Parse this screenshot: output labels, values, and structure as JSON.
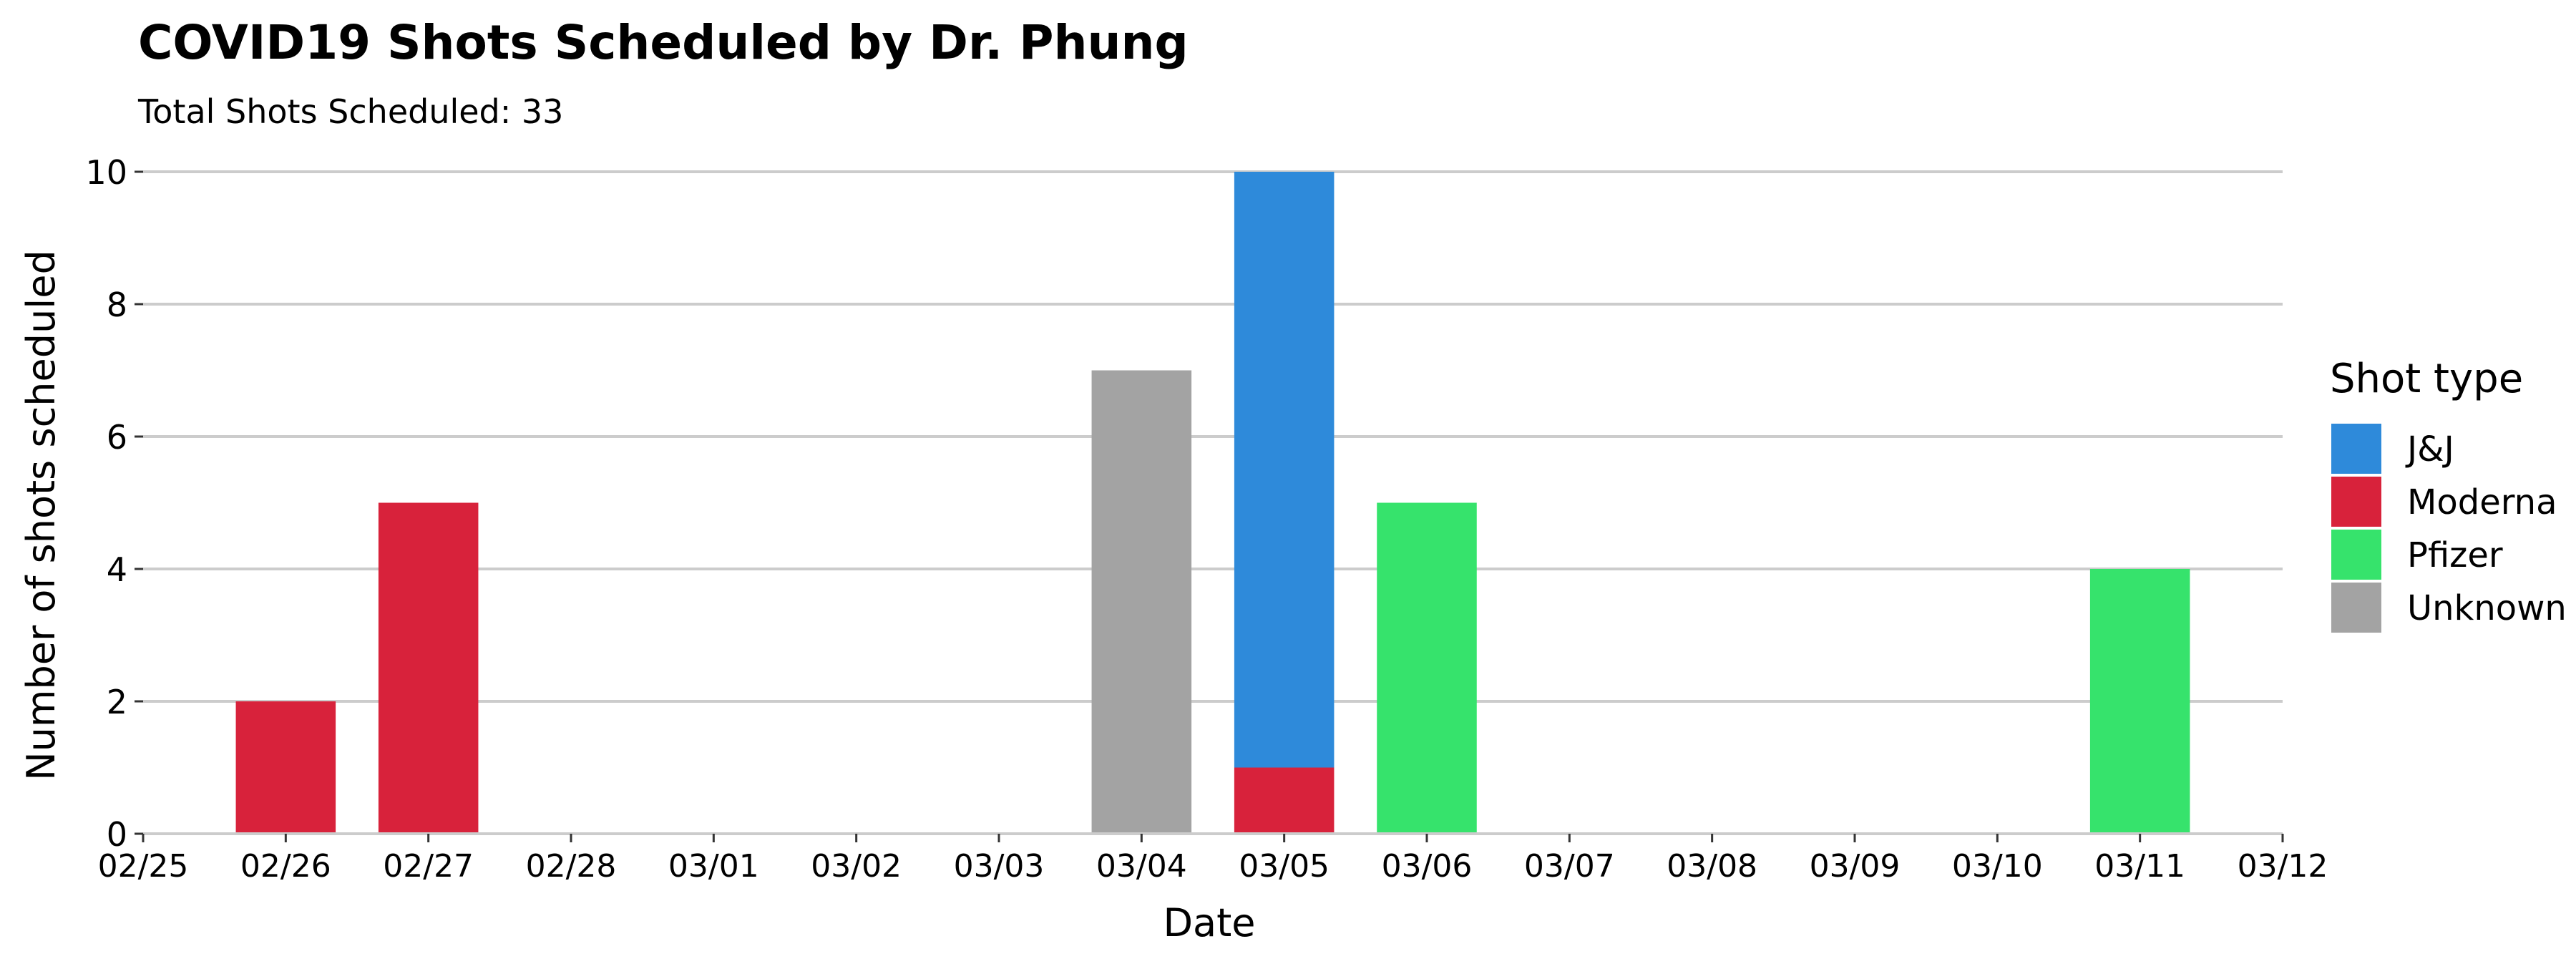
{
  "chart_data": {
    "type": "bar",
    "stacked": true,
    "title": "COVID19 Shots Scheduled by Dr. Phung",
    "subtitle": "Total Shots Scheduled: 33",
    "xlabel": "Date",
    "ylabel": "Number of shots scheduled",
    "x_ticks": [
      "02/25",
      "02/26",
      "02/27",
      "02/28",
      "03/01",
      "03/02",
      "03/03",
      "03/04",
      "03/05",
      "03/06",
      "03/07",
      "03/08",
      "03/09",
      "03/10",
      "03/11",
      "03/12"
    ],
    "y_ticks": [
      0,
      2,
      4,
      6,
      8,
      10
    ],
    "ylim": [
      0,
      10
    ],
    "grid": "horizontal",
    "legend": {
      "title": "Shot type",
      "position": "right"
    },
    "categories": [
      "02/26",
      "02/27",
      "03/04",
      "03/05",
      "03/06",
      "03/11"
    ],
    "series": [
      {
        "name": "J&J",
        "color": "#2e8ada",
        "values": [
          0,
          0,
          0,
          9,
          0,
          0
        ]
      },
      {
        "name": "Moderna",
        "color": "#d8223b",
        "values": [
          2,
          5,
          0,
          1,
          0,
          0
        ]
      },
      {
        "name": "Pfizer",
        "color": "#36e36c",
        "values": [
          0,
          0,
          0,
          0,
          5,
          4
        ]
      },
      {
        "name": "Unknown",
        "color": "#a3a3a3",
        "values": [
          0,
          0,
          7,
          0,
          0,
          0
        ]
      }
    ],
    "stack_order_bottom_to_top": [
      "Moderna",
      "Pfizer",
      "Unknown",
      "J&J"
    ]
  }
}
